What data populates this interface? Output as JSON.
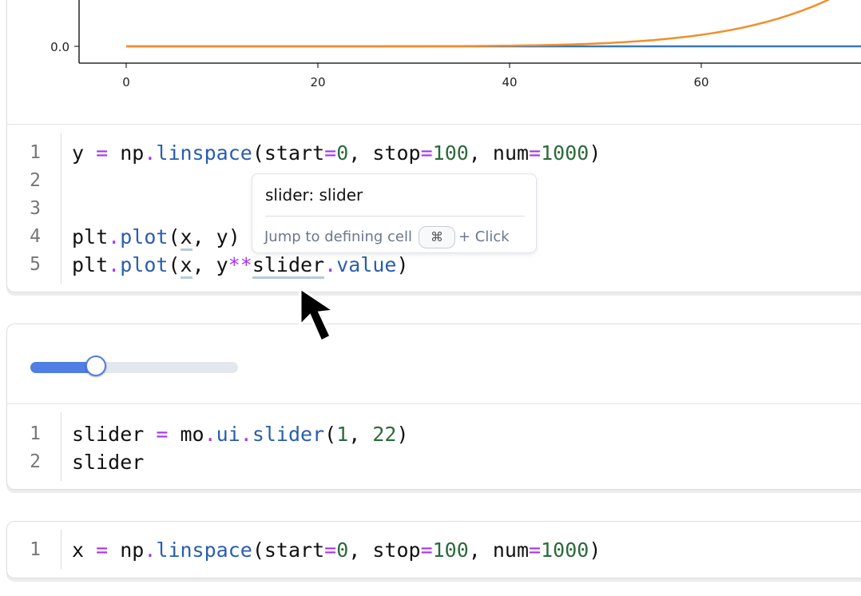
{
  "cells": [
    {
      "output": {
        "type": "plot",
        "y_tick_labels": [
          "0.0"
        ],
        "x_tick_labels": [
          "0",
          "20",
          "40",
          "60"
        ],
        "series_colors": [
          "#3a78b5",
          "#f28e2b"
        ]
      },
      "code": [
        {
          "n": "1",
          "parts": [
            [
              "y",
              ""
            ],
            [
              " ",
              ""
            ],
            [
              "=",
              "op"
            ],
            [
              " np",
              ""
            ],
            [
              ".",
              "op"
            ],
            [
              "linspace",
              "fn"
            ],
            [
              "(start",
              ""
            ],
            [
              "=",
              "op"
            ],
            [
              "0",
              "num"
            ],
            [
              ", stop",
              ""
            ],
            [
              "=",
              "op"
            ],
            [
              "100",
              "num"
            ],
            [
              ", num",
              ""
            ],
            [
              "=",
              "op"
            ],
            [
              "1000",
              "num"
            ],
            [
              ")",
              ""
            ]
          ]
        },
        {
          "n": "2",
          "parts": []
        },
        {
          "n": "3",
          "parts": []
        },
        {
          "n": "4",
          "parts": [
            [
              "plt",
              ""
            ],
            [
              ".",
              "op"
            ],
            [
              "plot",
              "fn"
            ],
            [
              "(",
              ""
            ],
            [
              "x",
              "ul"
            ],
            [
              ", y)",
              ""
            ]
          ]
        },
        {
          "n": "5",
          "parts": [
            [
              "plt",
              ""
            ],
            [
              ".",
              "op"
            ],
            [
              "plot",
              "fn"
            ],
            [
              "(",
              ""
            ],
            [
              "x",
              "ul"
            ],
            [
              ", y",
              ""
            ],
            [
              "**",
              "op"
            ],
            [
              "slider",
              "ul"
            ],
            [
              ".",
              "op"
            ],
            [
              "value",
              "fn"
            ],
            [
              ")",
              ""
            ]
          ]
        }
      ]
    },
    {
      "output": {
        "type": "slider",
        "min": 1,
        "max": 22,
        "value": 7,
        "accent": "#4f7fe3"
      },
      "code": [
        {
          "n": "1",
          "parts": [
            [
              "slider ",
              ""
            ],
            [
              "=",
              "op"
            ],
            [
              " mo",
              ""
            ],
            [
              ".",
              "op"
            ],
            [
              "ui",
              "fn"
            ],
            [
              ".",
              "op"
            ],
            [
              "slider",
              "fn"
            ],
            [
              "(",
              ""
            ],
            [
              "1",
              "num"
            ],
            [
              ", ",
              ""
            ],
            [
              "22",
              "num"
            ],
            [
              ")",
              ""
            ]
          ]
        },
        {
          "n": "2",
          "parts": [
            [
              "slider",
              ""
            ]
          ]
        }
      ]
    },
    {
      "code": [
        {
          "n": "1",
          "parts": [
            [
              "x ",
              ""
            ],
            [
              "=",
              "op"
            ],
            [
              " np",
              ""
            ],
            [
              ".",
              "op"
            ],
            [
              "linspace",
              "fn"
            ],
            [
              "(start",
              ""
            ],
            [
              "=",
              "op"
            ],
            [
              "0",
              "num"
            ],
            [
              ", stop",
              ""
            ],
            [
              "=",
              "op"
            ],
            [
              "100",
              "num"
            ],
            [
              ", num",
              ""
            ],
            [
              "=",
              "op"
            ],
            [
              "1000",
              "num"
            ],
            [
              ")",
              ""
            ]
          ]
        }
      ]
    }
  ],
  "tooltip": {
    "title": "slider: slider",
    "hint": "Jump to defining cell",
    "key": "⌘",
    "suffix": "+ Click"
  },
  "cursor": "arrow-pointer"
}
